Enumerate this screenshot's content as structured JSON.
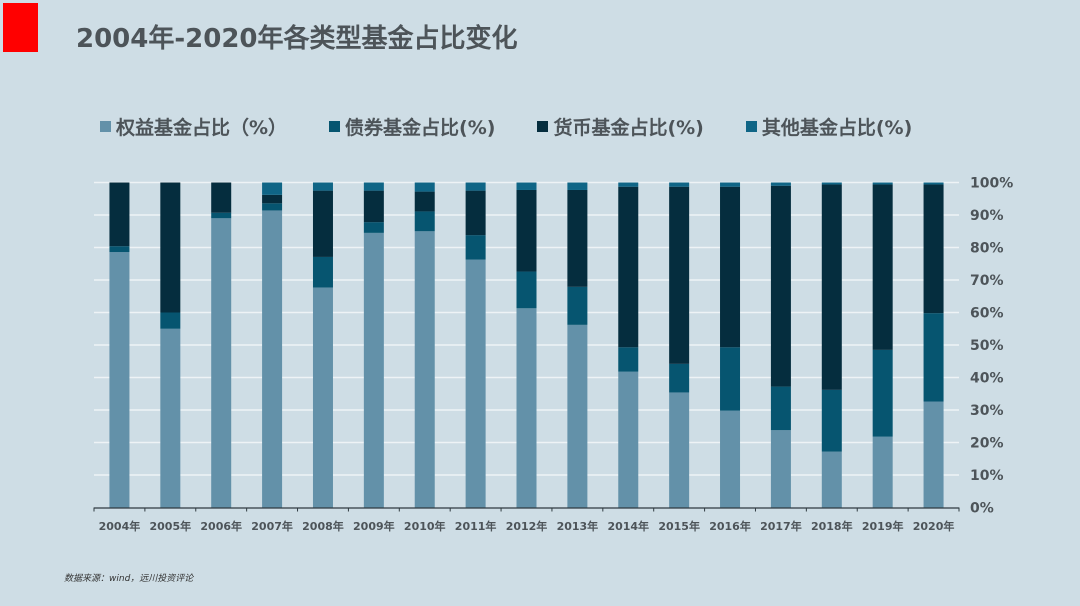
{
  "title": "2004年-2020年各类型基金占比变化",
  "source": "数据来源：wind，远川投资评论",
  "chart_data": {
    "type": "bar",
    "stacked": true,
    "title": "2004年-2020年各类型基金占比变化",
    "xlabel": "",
    "ylabel": "",
    "ylim": [
      0,
      100
    ],
    "y_ticks": [
      "0%",
      "10%",
      "20%",
      "30%",
      "40%",
      "50%",
      "60%",
      "70%",
      "80%",
      "90%",
      "100%"
    ],
    "y_axis_side": "right",
    "grid": true,
    "legend_position": "top",
    "categories": [
      "2004年",
      "2005年",
      "2006年",
      "2007年",
      "2008年",
      "2009年",
      "2010年",
      "2011年",
      "2012年",
      "2013年",
      "2014年",
      "2015年",
      "2016年",
      "2017年",
      "2018年",
      "2019年",
      "2020年"
    ],
    "series": [
      {
        "name": "权益基金占比（%）",
        "color": "#6391a9",
        "values": [
          78.6,
          55.0,
          89.0,
          91.4,
          67.7,
          84.5,
          85.0,
          76.3,
          61.3,
          56.2,
          41.8,
          35.4,
          29.8,
          23.8,
          17.2,
          21.8,
          32.6
        ]
      },
      {
        "name": "债券基金占比(%)",
        "color": "#065570",
        "values": [
          1.8,
          5.0,
          1.7,
          2.2,
          9.4,
          3.3,
          6.1,
          7.5,
          11.3,
          11.7,
          7.5,
          8.8,
          19.5,
          13.4,
          19.0,
          26.7,
          27.2
        ]
      },
      {
        "name": "货币基金占比(%)",
        "color": "#052d3e",
        "values": [
          19.6,
          40.0,
          9.3,
          2.6,
          20.4,
          9.7,
          6.1,
          13.7,
          25.1,
          29.8,
          49.4,
          54.5,
          49.4,
          61.8,
          63.2,
          50.9,
          39.6
        ]
      },
      {
        "name": "其他基金占比(%)",
        "color": "#0f6586",
        "values": [
          0.0,
          0.0,
          0.0,
          3.8,
          2.5,
          2.5,
          2.8,
          2.5,
          2.3,
          2.3,
          1.3,
          1.3,
          1.3,
          1.0,
          0.6,
          0.6,
          0.6
        ]
      }
    ]
  }
}
